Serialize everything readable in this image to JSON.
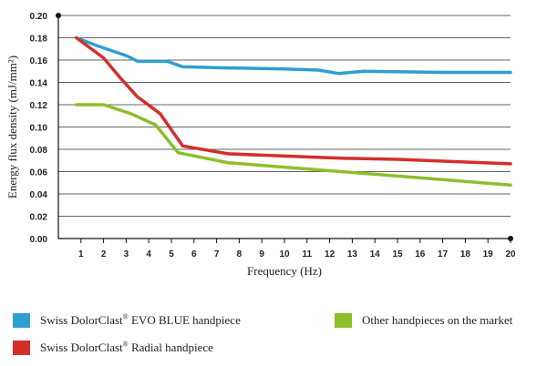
{
  "chart_data": {
    "type": "line",
    "xlabel": "Frequency (Hz)",
    "ylabel": "Energy flux density (mJ/mm²)",
    "ylim": [
      0,
      0.2
    ],
    "xlim": [
      0,
      20
    ],
    "x_ticks": [
      1,
      2,
      3,
      4,
      5,
      6,
      7,
      8,
      9,
      10,
      11,
      12,
      13,
      14,
      15,
      16,
      17,
      18,
      19,
      20
    ],
    "y_ticks": [
      "0.00",
      "0.02",
      "0.04",
      "0.06",
      "0.08",
      "0.10",
      "0.12",
      "0.14",
      "0.16",
      "0.18",
      "0.20"
    ],
    "grid": "horizontal",
    "legend_position": "bottom",
    "series": [
      {
        "name": "Swiss DolorClast® EVO BLUE handpiece",
        "color": "#2e9fd0",
        "points": [
          [
            0.8,
            0.18
          ],
          [
            1.7,
            0.173
          ],
          [
            3.0,
            0.164
          ],
          [
            3.5,
            0.159
          ],
          [
            4.8,
            0.159
          ],
          [
            5.5,
            0.154
          ],
          [
            7.5,
            0.153
          ],
          [
            10.0,
            0.152
          ],
          [
            11.5,
            0.151
          ],
          [
            12.4,
            0.148
          ],
          [
            13.5,
            0.15
          ],
          [
            17.0,
            0.149
          ],
          [
            20.0,
            0.149
          ]
        ]
      },
      {
        "name": "Swiss DolorClast® Radial handpiece",
        "color": "#d42e2b",
        "points": [
          [
            0.8,
            0.18
          ],
          [
            2.0,
            0.162
          ],
          [
            2.7,
            0.145
          ],
          [
            3.5,
            0.127
          ],
          [
            4.5,
            0.112
          ],
          [
            5.5,
            0.083
          ],
          [
            7.5,
            0.076
          ],
          [
            10.0,
            0.074
          ],
          [
            12.5,
            0.072
          ],
          [
            15.0,
            0.071
          ],
          [
            17.5,
            0.069
          ],
          [
            20.0,
            0.067
          ]
        ]
      },
      {
        "name": "Other handpieces on the market",
        "color": "#8cbf2a",
        "points": [
          [
            0.8,
            0.12
          ],
          [
            2.0,
            0.12
          ],
          [
            3.2,
            0.112
          ],
          [
            4.3,
            0.102
          ],
          [
            5.3,
            0.077
          ],
          [
            7.5,
            0.068
          ],
          [
            10.0,
            0.064
          ],
          [
            12.5,
            0.06
          ],
          [
            15.0,
            0.056
          ],
          [
            17.5,
            0.052
          ],
          [
            20.0,
            0.048
          ]
        ]
      }
    ]
  },
  "legend": {
    "evo": {
      "name": "Swiss DolorClast",
      "reg": "®",
      "rest": " EVO BLUE handpiece",
      "color": "#2e9fd0"
    },
    "radial": {
      "name": "Swiss DolorClast",
      "reg": "®",
      "rest": " Radial handpiece",
      "color": "#d42e2b"
    },
    "other": {
      "name": "Other handpieces on the market",
      "color": "#8cbf2a"
    }
  }
}
